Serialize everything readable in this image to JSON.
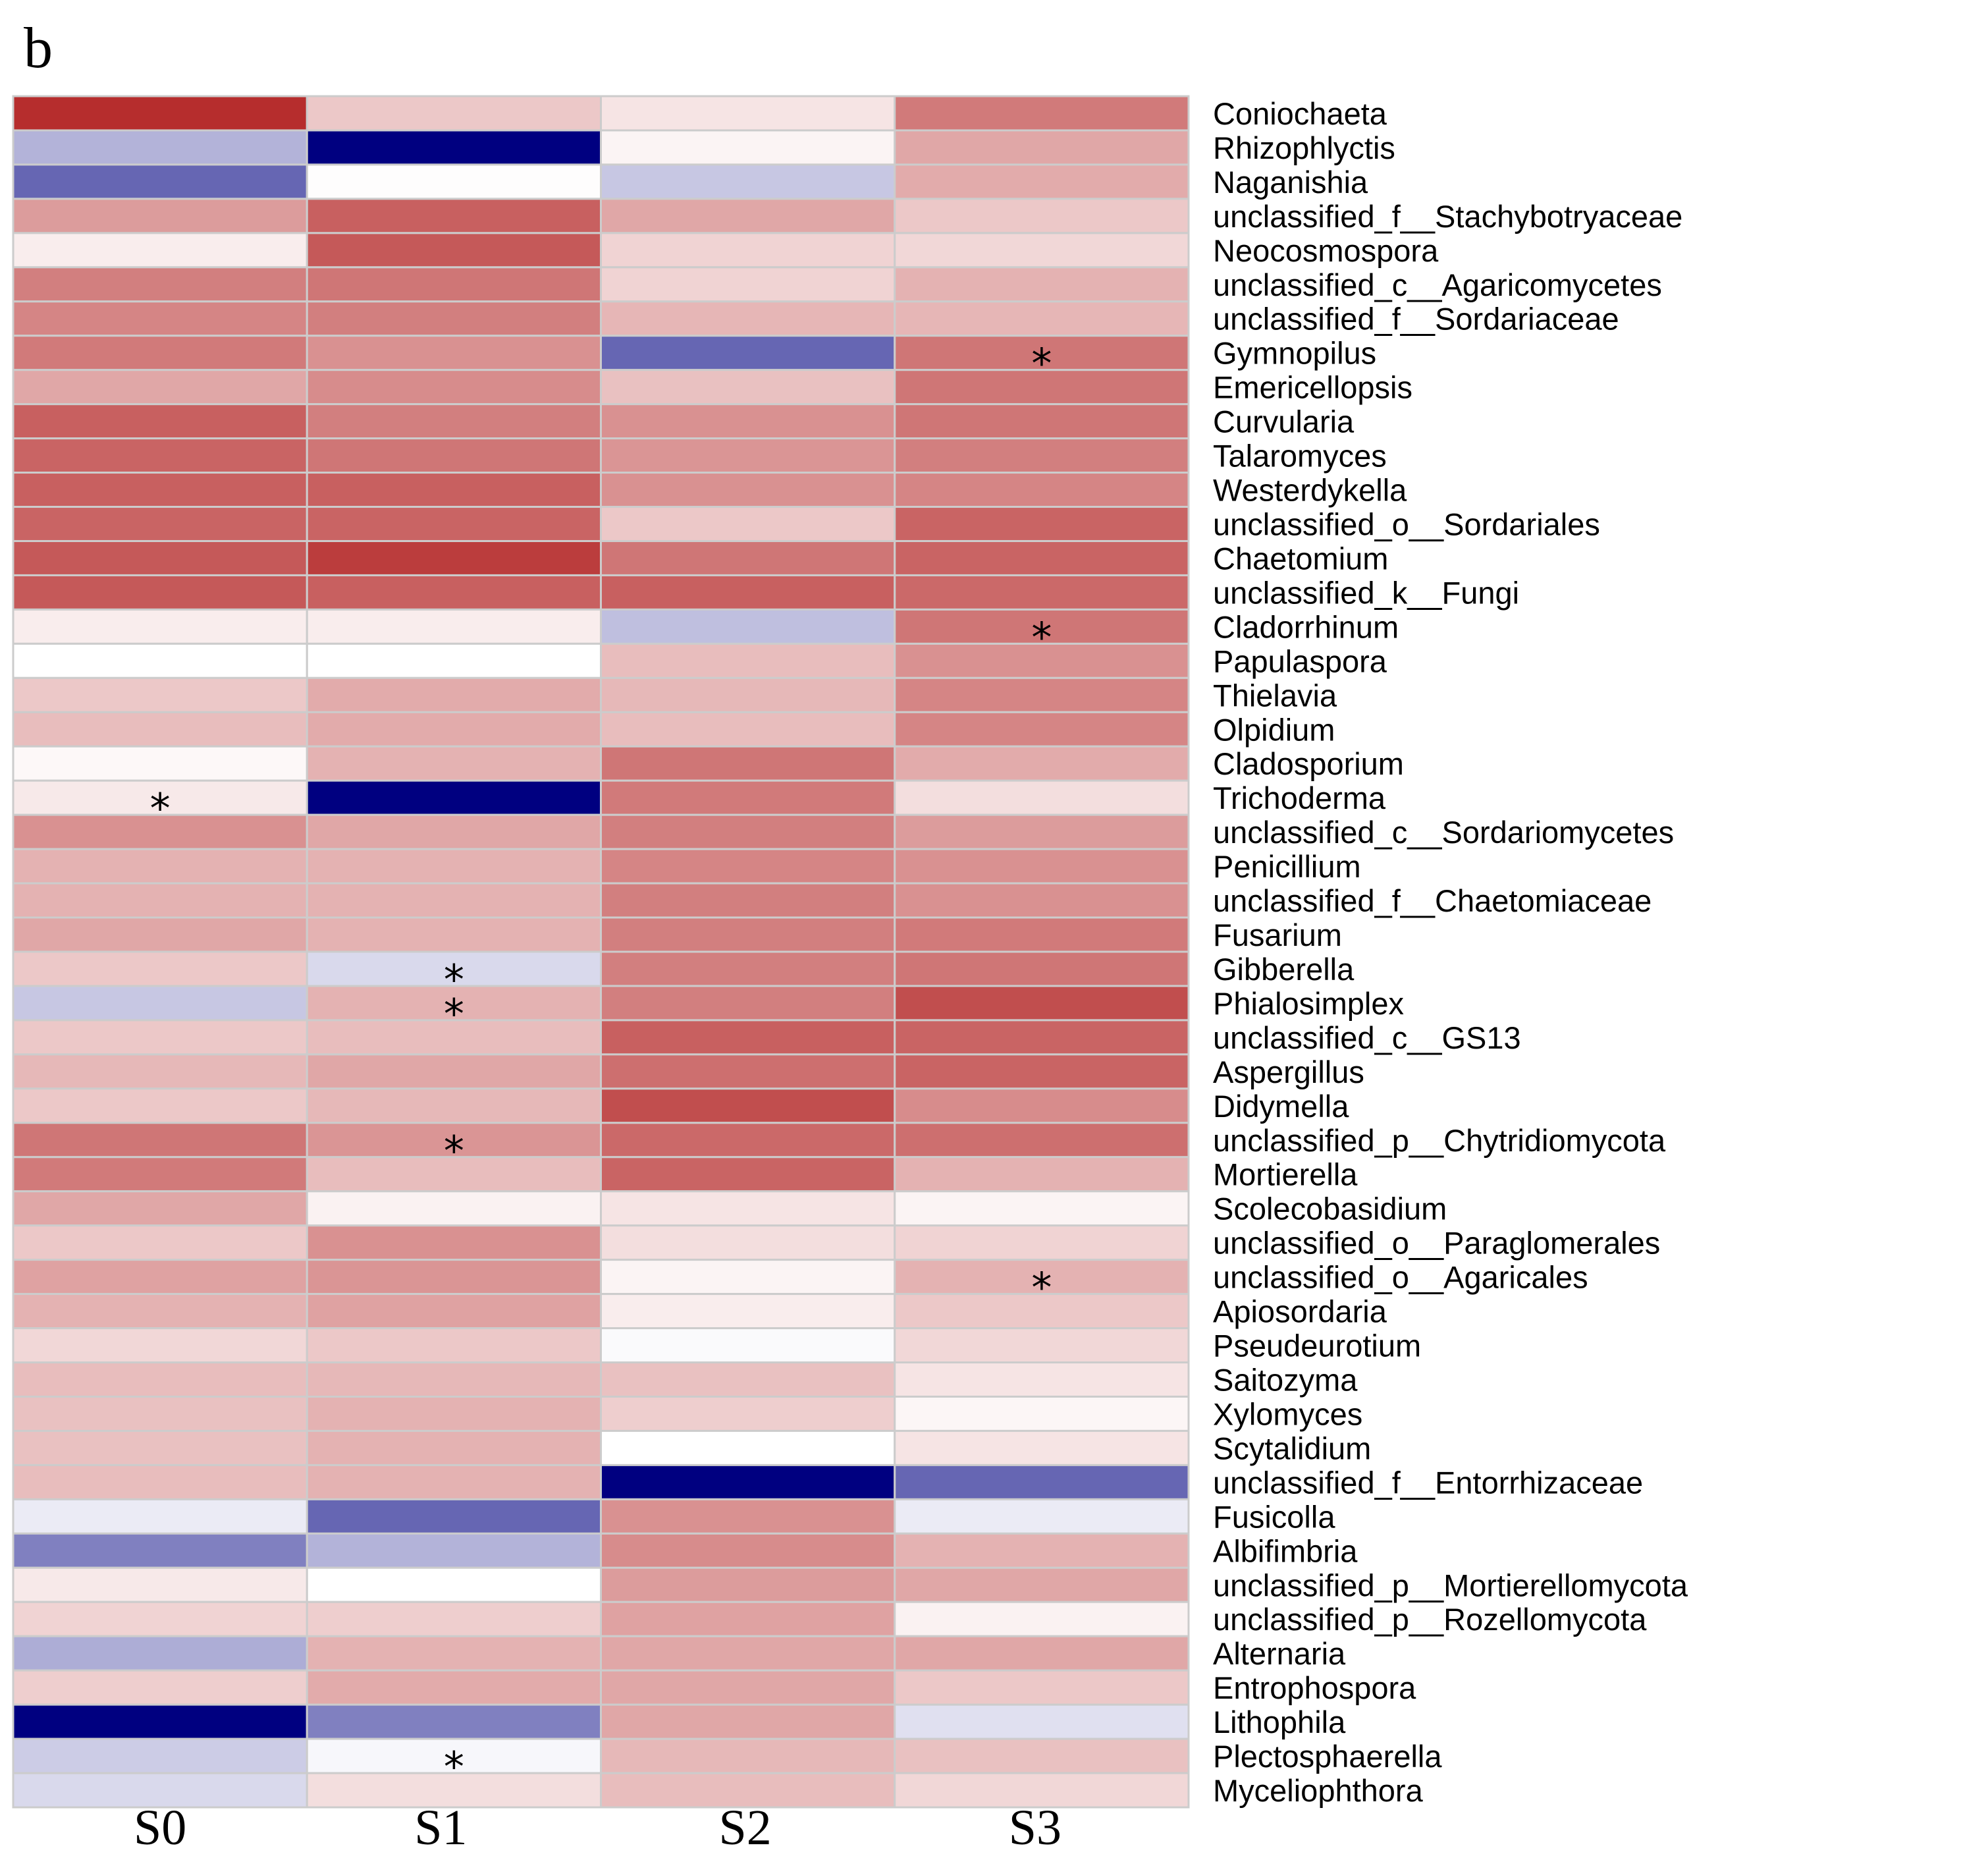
{
  "panel_label": "b",
  "chart_data": {
    "type": "heatmap",
    "title": "",
    "xlabel": "",
    "ylabel": "",
    "columns": [
      "S0",
      "S1",
      "S2",
      "S3"
    ],
    "rows": [
      "Coniochaeta",
      "Rhizophlyctis",
      "Naganishia",
      "unclassified_f__Stachybotryaceae",
      "Neocosmospora",
      "unclassified_c__Agaricomycetes",
      "unclassified_f__Sordariaceae",
      "Gymnopilus",
      "Emericellopsis",
      "Curvularia",
      "Talaromyces",
      "Westerdykella",
      "unclassified_o__Sordariales",
      "Chaetomium",
      "unclassified_k__Fungi",
      "Cladorrhinum",
      "Papulaspora",
      "Thielavia",
      "Olpidium",
      "Cladosporium",
      "Trichoderma",
      "unclassified_c__Sordariomycetes",
      "Penicillium",
      "unclassified_f__Chaetomiaceae",
      "Fusarium",
      "Gibberella",
      "Phialosimplex",
      "unclassified_c__GS13",
      "Aspergillus",
      "Didymella",
      "unclassified_p__Chytridiomycota",
      "Mortierella",
      "Scolecobasidium",
      "unclassified_o__Paraglomerales",
      "unclassified_o__Agaricales",
      "Apiosordaria",
      "Pseudeurotium",
      "Saitozyma",
      "Xylomyces",
      "Scytalidium",
      "unclassified_f__Entorrhizaceae",
      "Fusicolla",
      "Albifimbria",
      "unclassified_p__Mortierellomycota",
      "unclassified_p__Rozellomycota",
      "Alternaria",
      "Entrophospora",
      "Lithophila",
      "Plectosphaerella",
      "Myceliophthora"
    ],
    "values": [
      [
        0.95,
        0.25,
        0.12,
        0.6
      ],
      [
        -0.3,
        -1.0,
        0.05,
        0.4
      ],
      [
        -0.6,
        0.01,
        -0.22,
        0.38
      ],
      [
        0.45,
        0.72,
        0.4,
        0.25
      ],
      [
        0.08,
        0.75,
        0.2,
        0.18
      ],
      [
        0.58,
        0.62,
        0.2,
        0.35
      ],
      [
        0.55,
        0.58,
        0.33,
        0.33
      ],
      [
        0.6,
        0.5,
        -0.6,
        0.62
      ],
      [
        0.4,
        0.52,
        0.28,
        0.62
      ],
      [
        0.72,
        0.58,
        0.5,
        0.62
      ],
      [
        0.7,
        0.62,
        0.48,
        0.58
      ],
      [
        0.72,
        0.72,
        0.5,
        0.55
      ],
      [
        0.7,
        0.7,
        0.25,
        0.7
      ],
      [
        0.75,
        0.88,
        0.62,
        0.7
      ],
      [
        0.75,
        0.72,
        0.72,
        0.68
      ],
      [
        0.08,
        0.08,
        -0.25,
        0.62
      ],
      [
        0.0,
        0.0,
        0.3,
        0.5
      ],
      [
        0.25,
        0.38,
        0.32,
        0.55
      ],
      [
        0.3,
        0.38,
        0.3,
        0.55
      ],
      [
        0.03,
        0.35,
        0.62,
        0.38
      ],
      [
        0.1,
        -1.0,
        0.6,
        0.15
      ],
      [
        0.5,
        0.4,
        0.58,
        0.45
      ],
      [
        0.35,
        0.35,
        0.55,
        0.5
      ],
      [
        0.35,
        0.35,
        0.58,
        0.5
      ],
      [
        0.4,
        0.35,
        0.58,
        0.6
      ],
      [
        0.25,
        -0.15,
        0.58,
        0.62
      ],
      [
        -0.22,
        0.35,
        0.58,
        0.8
      ],
      [
        0.25,
        0.3,
        0.72,
        0.7
      ],
      [
        0.32,
        0.4,
        0.65,
        0.7
      ],
      [
        0.25,
        0.32,
        0.8,
        0.52
      ],
      [
        0.62,
        0.48,
        0.68,
        0.65
      ],
      [
        0.6,
        0.3,
        0.7,
        0.35
      ],
      [
        0.4,
        0.06,
        0.12,
        0.05
      ],
      [
        0.25,
        0.5,
        0.15,
        0.2
      ],
      [
        0.42,
        0.48,
        0.05,
        0.35
      ],
      [
        0.35,
        0.42,
        0.08,
        0.25
      ],
      [
        0.18,
        0.25,
        -0.02,
        0.18
      ],
      [
        0.3,
        0.32,
        0.28,
        0.12
      ],
      [
        0.28,
        0.35,
        0.22,
        0.04
      ],
      [
        0.28,
        0.35,
        0.0,
        0.12
      ],
      [
        0.3,
        0.35,
        -1.0,
        -0.6
      ],
      [
        -0.08,
        -0.6,
        0.5,
        -0.08
      ],
      [
        -0.5,
        -0.3,
        0.52,
        0.35
      ],
      [
        0.1,
        0.0,
        0.45,
        0.4
      ],
      [
        0.2,
        0.22,
        0.42,
        0.06
      ],
      [
        -0.32,
        0.35,
        0.4,
        0.4
      ],
      [
        0.22,
        0.38,
        0.4,
        0.25
      ],
      [
        -1.0,
        -0.5,
        0.4,
        -0.12
      ],
      [
        -0.2,
        -0.03,
        0.32,
        0.28
      ],
      [
        -0.15,
        0.15,
        0.3,
        0.18
      ]
    ],
    "significance_marker": "*",
    "significant_cells": [
      {
        "row": "Gymnopilus",
        "column": "S3"
      },
      {
        "row": "Cladorrhinum",
        "column": "S3"
      },
      {
        "row": "Trichoderma",
        "column": "S0"
      },
      {
        "row": "Gibberella",
        "column": "S1"
      },
      {
        "row": "Phialosimplex",
        "column": "S1"
      },
      {
        "row": "unclassified_p__Chytridiomycota",
        "column": "S1"
      },
      {
        "row": "unclassified_o__Agaricales",
        "column": "S3"
      },
      {
        "row": "Plectosphaerella",
        "column": "S1"
      }
    ],
    "color_scale": {
      "min": -1,
      "max": 1,
      "low_color": "#000080",
      "mid_color": "#ffffff",
      "high_color": "#b22222"
    },
    "grid": true,
    "grid_color": "#cccccc",
    "legend": "none"
  }
}
